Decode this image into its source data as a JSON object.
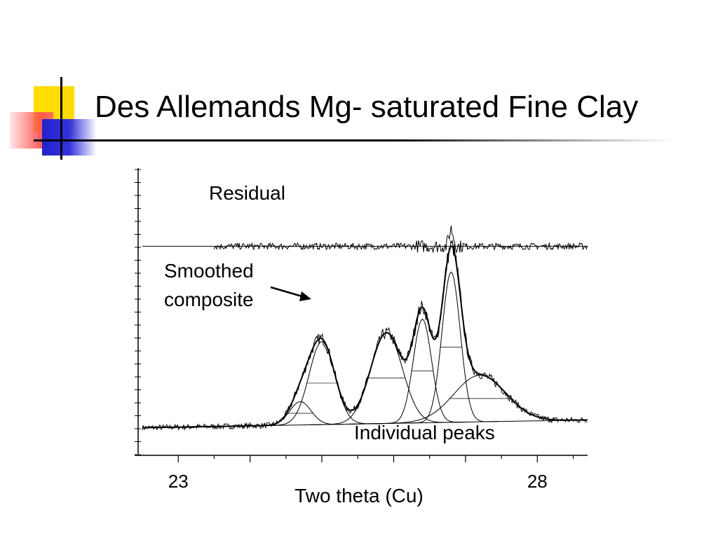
{
  "slide": {
    "title": "Des Allemands Mg- saturated Fine Clay"
  },
  "chart_data": {
    "type": "line",
    "xlabel": "Two theta (Cu)",
    "ylabel": "",
    "xlim": [
      22.5,
      28.7
    ],
    "ylim": [
      0,
      1.0
    ],
    "x_tick_labels": [
      {
        "value": 23,
        "label": "23"
      },
      {
        "value": 28,
        "label": "28"
      }
    ],
    "x_minor_ticks": [
      23,
      23.5,
      24,
      24.5,
      25,
      25.5,
      26,
      26.5,
      27,
      27.5,
      28,
      28.5
    ],
    "grid": false,
    "annotations": [
      {
        "text": "Residual",
        "target": "residual"
      },
      {
        "text": "Smoothed composite",
        "lines": [
          "Smoothed",
          "composite"
        ],
        "target": "composite",
        "arrow": true
      },
      {
        "text": "Individual peaks",
        "target": "peaks"
      }
    ],
    "residual_level": 0.72,
    "residual_x_range": [
      23.5,
      28.7
    ],
    "background": {
      "start": [
        22.5,
        0.02
      ],
      "end": [
        28.7,
        0.05
      ]
    },
    "peaks": [
      {
        "center": 24.7,
        "height": 0.09,
        "fwhm": 0.35
      },
      {
        "center": 25.0,
        "height": 0.32,
        "fwhm": 0.42
      },
      {
        "center": 25.9,
        "height": 0.35,
        "fwhm": 0.52
      },
      {
        "center": 26.4,
        "height": 0.4,
        "fwhm": 0.3
      },
      {
        "center": 26.8,
        "height": 0.58,
        "fwhm": 0.3
      },
      {
        "center": 27.2,
        "height": 0.18,
        "fwhm": 0.85
      }
    ]
  }
}
